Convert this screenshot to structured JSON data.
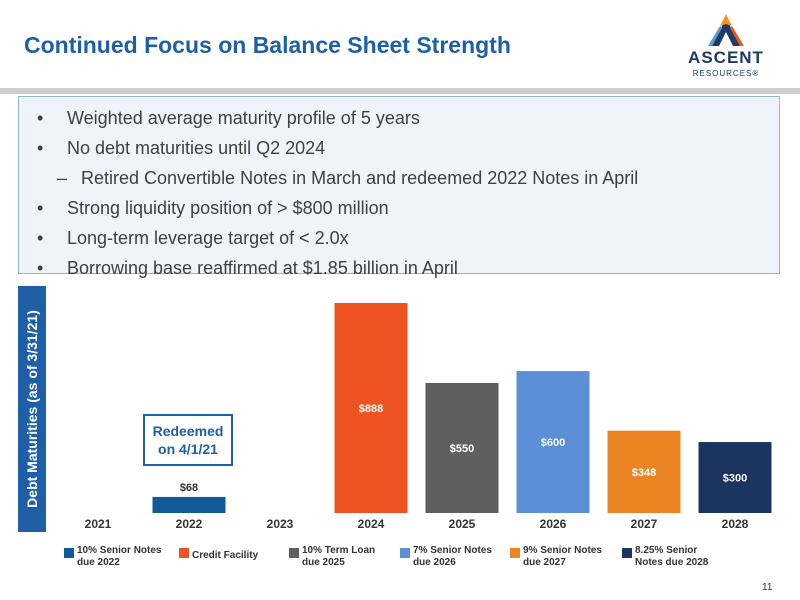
{
  "slide": {
    "title": "Continued Focus on Balance Sheet Strength",
    "page_number": "11"
  },
  "logo": {
    "word": "ASCENT",
    "sub": "RESOURCES®",
    "colors": [
      "#f7941d",
      "#e8542a",
      "#5a9bd5",
      "#1f3b64"
    ]
  },
  "bullets": [
    {
      "marker": "•",
      "text": "Weighted average maturity profile of 5 years",
      "level": 1
    },
    {
      "marker": "•",
      "text": "No debt maturities until Q2 2024",
      "level": 1
    },
    {
      "marker": "–",
      "text": "Retired Convertible Notes in March and redeemed 2022 Notes in April",
      "level": 2
    },
    {
      "marker": "•",
      "text": "Strong liquidity position of > $800 million",
      "level": 1
    },
    {
      "marker": "•",
      "text": "Long-term leverage target of < 2.0x",
      "level": 1
    },
    {
      "marker": "•",
      "text": "Borrowing base reaffirmed at $1.85 billion in April",
      "level": 1
    }
  ],
  "chart_data": {
    "type": "bar",
    "title": "",
    "ylabel": "Debt Maturities (as of 3/31/21)",
    "xlabel": "",
    "categories": [
      "2021",
      "2022",
      "2023",
      "2024",
      "2025",
      "2026",
      "2027",
      "2028"
    ],
    "ylim": [
      0,
      888
    ],
    "grid": false,
    "legend": "bottom",
    "bars": [
      {
        "category": "2022",
        "value": 68,
        "label": "$68",
        "series": "10% Senior Notes due 2022",
        "color": "#0f5a97",
        "label_position": "above",
        "label_color": "#333333"
      },
      {
        "category": "2024",
        "value": 888,
        "label": "$888",
        "series": "Credit Facility",
        "color": "#f05322",
        "label_position": "inside",
        "label_color": "#ffffff"
      },
      {
        "category": "2025",
        "value": 550,
        "label": "$550",
        "series": "10% Term Loan due 2025",
        "color": "#5f5f5f",
        "label_position": "inside",
        "label_color": "#ffffff"
      },
      {
        "category": "2026",
        "value": 600,
        "label": "$600",
        "series": "7% Senior Notes due 2026",
        "color": "#5b8fd6",
        "label_position": "inside",
        "label_color": "#ffffff"
      },
      {
        "category": "2027",
        "value": 348,
        "label": "$348",
        "series": "9% Senior Notes due 2027",
        "color": "#ec8424",
        "label_position": "inside",
        "label_color": "#ffffff"
      },
      {
        "category": "2028",
        "value": 300,
        "label": "$300",
        "series": "8.25% Senior Notes due 2028",
        "color": "#1c3460",
        "label_position": "inside",
        "label_color": "#ffffff"
      }
    ],
    "annotations": [
      {
        "text": "Redeemed on 4/1/21",
        "line1": "Redeemed",
        "line2": "on 4/1/21",
        "category": "2022"
      }
    ],
    "legend_entries": [
      {
        "line1": "10% Senior Notes",
        "line2": "due 2022",
        "color": "#0f5a97"
      },
      {
        "line1": "Credit Facility",
        "line2": "",
        "color": "#f05322"
      },
      {
        "line1": "10% Term Loan",
        "line2": "due 2025",
        "color": "#5f5f5f"
      },
      {
        "line1": "7% Senior Notes",
        "line2": "due 2026",
        "color": "#5b8fd6"
      },
      {
        "line1": "9% Senior Notes",
        "line2": "due 2027",
        "color": "#ec8424"
      },
      {
        "line1": "8.25% Senior",
        "line2": "Notes due 2028",
        "color": "#1c3460"
      }
    ]
  }
}
